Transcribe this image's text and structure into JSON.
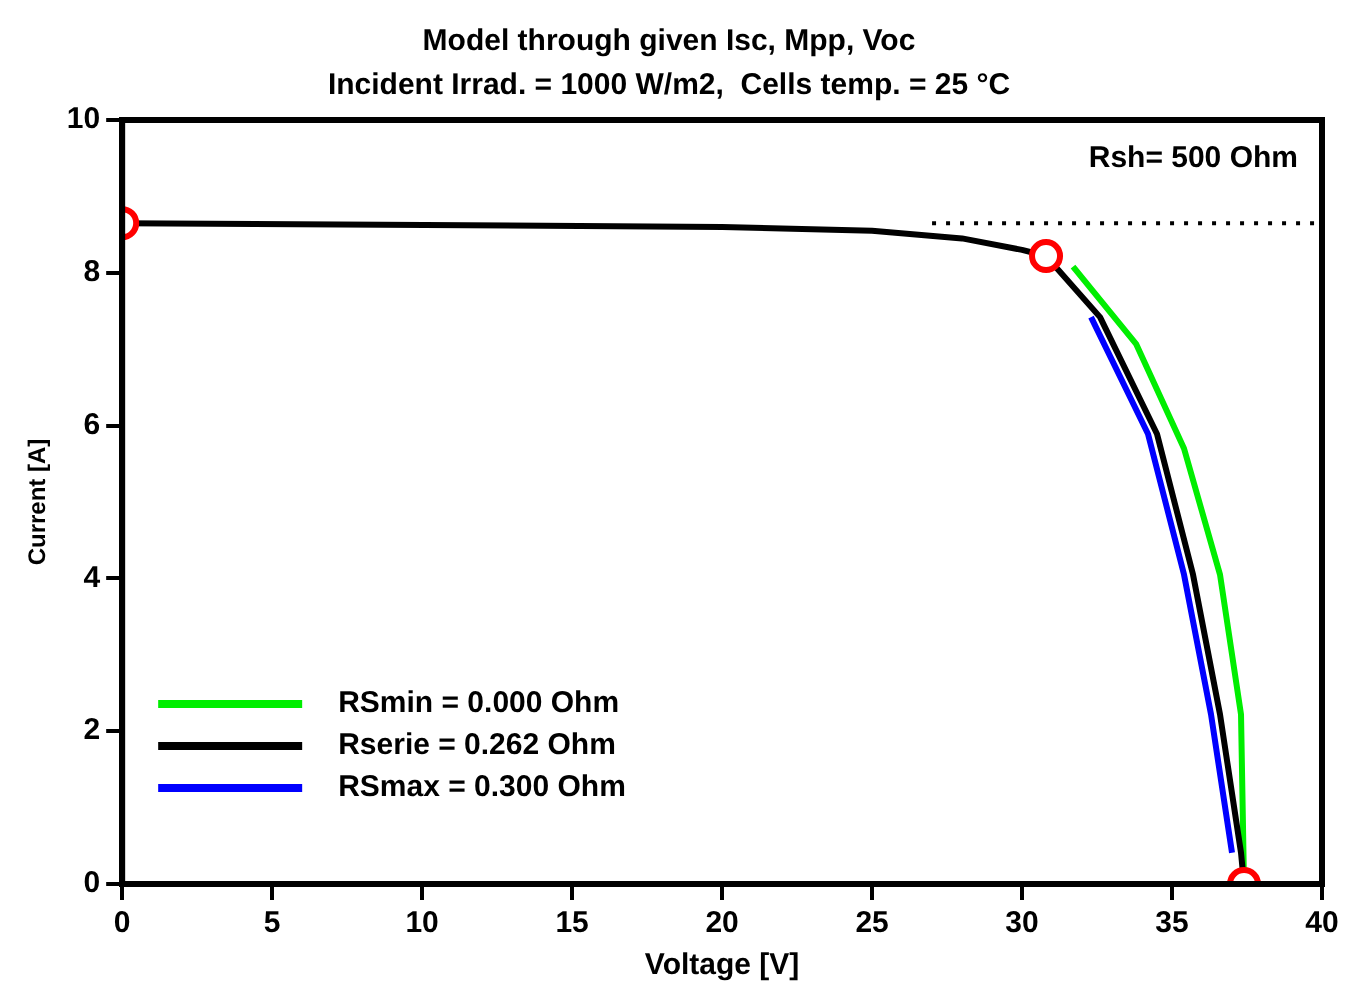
{
  "chart_data": {
    "type": "line",
    "title": "Model through given Isc, Mpp, Voc",
    "subtitle": "Incident Irrad. = 1000 W/m2,  Cells temp. = 25 °C",
    "xlabel": "Voltage [V]",
    "ylabel": "Current [A]",
    "xlim": [
      0,
      40
    ],
    "xticks": [
      0,
      5,
      10,
      15,
      20,
      25,
      30,
      35,
      40
    ],
    "ylim": [
      0,
      10
    ],
    "yticks": [
      0,
      2,
      4,
      6,
      8,
      10
    ],
    "grid": false,
    "legend": "bottom left",
    "marker": "none",
    "line_style": "solid",
    "series": [
      {
        "name": "RSmin = 0.000 Ohm",
        "color": "#00ee00",
        "x": [
          31.7,
          33.8,
          35.4,
          36.6,
          37.3,
          37.4
        ],
        "values": [
          8.08,
          7.07,
          5.7,
          4.05,
          2.22,
          0
        ]
      },
      {
        "name": "Rserie = 0.262 Ohm",
        "color": "#000000",
        "x": [
          0,
          20,
          25,
          28,
          30,
          30.8,
          32.6,
          34.5,
          35.7,
          36.6,
          37.3,
          37.4
        ],
        "values": [
          8.65,
          8.6,
          8.55,
          8.45,
          8.3,
          8.22,
          7.42,
          5.89,
          4.05,
          2.22,
          0.41,
          0
        ]
      },
      {
        "name": "RSmax = 0.300 Ohm",
        "color": "#0000ff",
        "x": [
          32.3,
          34.2,
          35.4,
          36.3,
          37
        ],
        "values": [
          7.42,
          5.89,
          4.05,
          2.22,
          0.41
        ]
      },
      {
        "type": "scatter",
        "color": "#ff0000",
        "marker": "circle",
        "x": [
          0,
          30.8,
          37.4
        ],
        "values": [
          8.65,
          8.22,
          0
        ]
      }
    ],
    "ref_lines": [
      {
        "axis": "y",
        "value": 8.65,
        "line_style": "dotted",
        "color": "#000000"
      }
    ],
    "annotations": [
      "Rsh= 500 Ohm"
    ]
  }
}
